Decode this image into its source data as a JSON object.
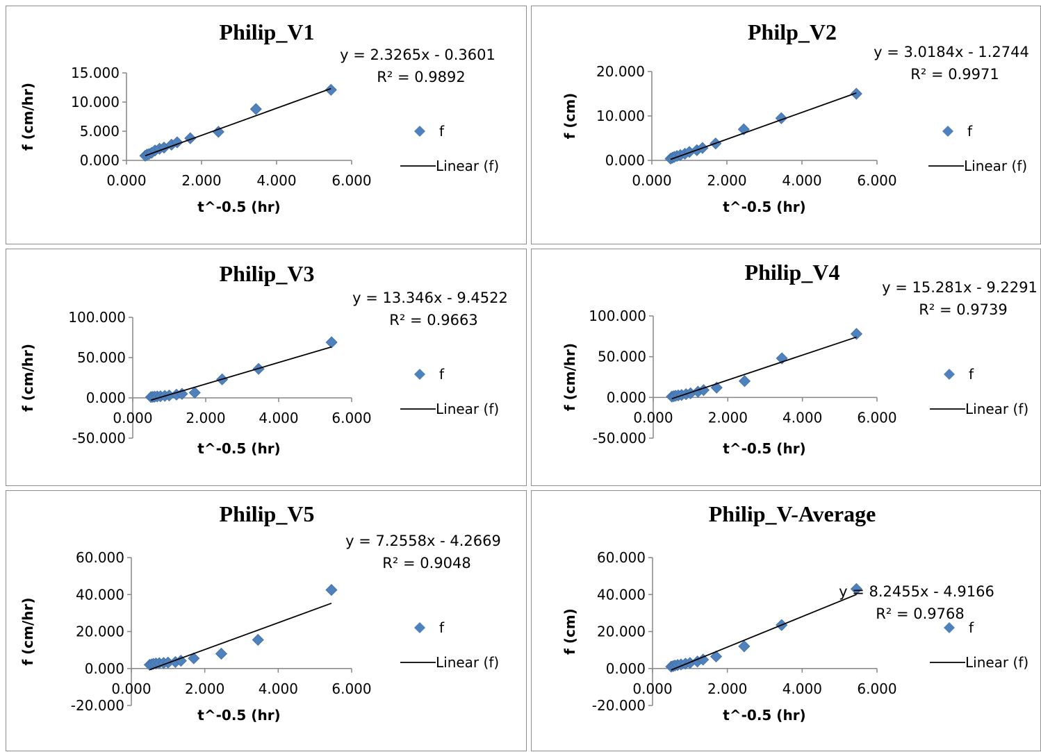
{
  "chart_data": [
    {
      "type": "scatter",
      "title": "Philip_V1",
      "xlabel": "t^-0.5 (hr)",
      "ylabel": "f (cm/hr)",
      "xlim": [
        0,
        6
      ],
      "ylim": [
        0,
        15
      ],
      "xticks": [
        "0.000",
        "2.000",
        "4.000",
        "6.000"
      ],
      "yticks": [
        "0.000",
        "5.000",
        "10.000",
        "15.000"
      ],
      "yticks_vals": [
        0,
        5,
        10,
        15
      ],
      "points": [
        [
          0.5,
          0.8
        ],
        [
          0.55,
          1.0
        ],
        [
          0.6,
          1.1
        ],
        [
          0.67,
          1.3
        ],
        [
          0.76,
          1.7
        ],
        [
          0.88,
          2.0
        ],
        [
          1.0,
          2.2
        ],
        [
          1.2,
          2.7
        ],
        [
          1.35,
          3.1
        ],
        [
          1.7,
          3.8
        ],
        [
          2.45,
          4.9
        ],
        [
          3.45,
          8.8
        ],
        [
          5.45,
          12.1
        ]
      ],
      "trendline": {
        "slope": 2.3265,
        "intercept": -0.3601,
        "x_start": 0.5,
        "x_end": 5.45
      },
      "equation": "y = 2.3265x - 0.3601",
      "r2": "R² = 0.9892",
      "legend": {
        "series": "f",
        "trend": "Linear (f)"
      }
    },
    {
      "type": "scatter",
      "title": "Philp_V2",
      "xlabel": "t^-0.5 (hr)",
      "ylabel": "f (cm)",
      "xlim": [
        0,
        6
      ],
      "ylim": [
        0,
        20
      ],
      "xticks": [
        "0.000",
        "2.000",
        "4.000",
        "6.000"
      ],
      "yticks": [
        "0.000",
        "10.000",
        "20.000"
      ],
      "yticks_vals": [
        0,
        10,
        20
      ],
      "points": [
        [
          0.5,
          0.4
        ],
        [
          0.55,
          0.6
        ],
        [
          0.6,
          0.8
        ],
        [
          0.67,
          1.0
        ],
        [
          0.76,
          1.2
        ],
        [
          0.88,
          1.5
        ],
        [
          1.0,
          1.9
        ],
        [
          1.2,
          2.3
        ],
        [
          1.35,
          2.8
        ],
        [
          1.7,
          3.8
        ],
        [
          2.45,
          7.0
        ],
        [
          3.45,
          9.5
        ],
        [
          5.45,
          15.0
        ]
      ],
      "trendline": {
        "slope": 3.0184,
        "intercept": -1.2744,
        "x_start": 0.5,
        "x_end": 5.45
      },
      "equation": "y = 3.0184x - 1.2744",
      "r2": "R² = 0.9971",
      "legend": {
        "series": "f",
        "trend": "Linear (f)"
      }
    },
    {
      "type": "scatter",
      "title": "Philip_V3",
      "xlabel": "t^-0.5 (hr)",
      "ylabel": "f (cm/hr)",
      "xlim": [
        0,
        6
      ],
      "ylim": [
        -50,
        100
      ],
      "xticks": [
        "0.000",
        "2.000",
        "4.000",
        "6.000"
      ],
      "yticks": [
        "-50.000",
        "0.000",
        "50.000",
        "100.000"
      ],
      "yticks_vals": [
        -50,
        0,
        50,
        100
      ],
      "points": [
        [
          0.5,
          1.0
        ],
        [
          0.55,
          1.2
        ],
        [
          0.6,
          1.5
        ],
        [
          0.67,
          1.8
        ],
        [
          0.76,
          2.0
        ],
        [
          0.88,
          2.5
        ],
        [
          1.0,
          3.0
        ],
        [
          1.2,
          4.0
        ],
        [
          1.35,
          5.0
        ],
        [
          1.7,
          6.5
        ],
        [
          2.45,
          23.0
        ],
        [
          3.45,
          36.0
        ],
        [
          5.45,
          69.0
        ]
      ],
      "trendline": {
        "slope": 13.346,
        "intercept": -9.4522,
        "x_start": 0.5,
        "x_end": 5.45
      },
      "equation": "y = 13.346x - 9.4522",
      "r2": "R² = 0.9663",
      "legend": {
        "series": "f",
        "trend": "Linear (f)"
      }
    },
    {
      "type": "scatter",
      "title": "Philip_V4",
      "xlabel": "t^-0.5 (hr)",
      "ylabel": "f (cm/hr)",
      "xlim": [
        0,
        6
      ],
      "ylim": [
        -50,
        100
      ],
      "xticks": [
        "0.000",
        "2.000",
        "4.000",
        "6.000"
      ],
      "yticks": [
        "-50.000",
        "0.000",
        "50.000",
        "100.000"
      ],
      "yticks_vals": [
        -50,
        0,
        50,
        100
      ],
      "points": [
        [
          0.5,
          1.0
        ],
        [
          0.55,
          1.5
        ],
        [
          0.6,
          2.0
        ],
        [
          0.67,
          2.5
        ],
        [
          0.76,
          3.0
        ],
        [
          0.88,
          4.0
        ],
        [
          1.0,
          5.0
        ],
        [
          1.2,
          7.0
        ],
        [
          1.35,
          9.0
        ],
        [
          1.7,
          12.0
        ],
        [
          2.45,
          20.0
        ],
        [
          3.45,
          48.0
        ],
        [
          5.45,
          78.0
        ]
      ],
      "trendline": {
        "slope": 15.281,
        "intercept": -9.2291,
        "x_start": 0.5,
        "x_end": 5.45
      },
      "equation": "y = 15.281x - 9.2291",
      "r2": "R² = 0.9739",
      "legend": {
        "series": "f",
        "trend": "Linear (f)"
      }
    },
    {
      "type": "scatter",
      "title": "Philip_V5",
      "xlabel": "t^-0.5 (hr)",
      "ylabel": "f (cm/hr)",
      "xlim": [
        0,
        6
      ],
      "ylim": [
        -20,
        60
      ],
      "xticks": [
        "0.000",
        "2.000",
        "4.000",
        "6.000"
      ],
      "yticks": [
        "-20.000",
        "0.000",
        "20.000",
        "40.000",
        "60.000"
      ],
      "yticks_vals": [
        -20,
        0,
        20,
        40,
        60
      ],
      "points": [
        [
          0.5,
          2.0
        ],
        [
          0.55,
          2.2
        ],
        [
          0.6,
          2.5
        ],
        [
          0.67,
          2.7
        ],
        [
          0.76,
          2.9
        ],
        [
          0.88,
          3.0
        ],
        [
          1.0,
          3.2
        ],
        [
          1.2,
          3.5
        ],
        [
          1.35,
          4.2
        ],
        [
          1.7,
          5.5
        ],
        [
          2.45,
          8.0
        ],
        [
          3.45,
          15.5
        ],
        [
          5.45,
          42.5
        ]
      ],
      "trendline": {
        "slope": 7.2558,
        "intercept": -4.2669,
        "x_start": 0.5,
        "x_end": 5.45
      },
      "equation": "y = 7.2558x - 4.2669",
      "r2": "R² = 0.9048",
      "legend": {
        "series": "f",
        "trend": "Linear (f)"
      }
    },
    {
      "type": "scatter",
      "title": "Philip_V-Average",
      "xlabel": "t^-0.5 (hr)",
      "ylabel": "f (cm)",
      "xlim": [
        0,
        6
      ],
      "ylim": [
        -20,
        60
      ],
      "xticks": [
        "0.000",
        "2.000",
        "4.000",
        "6.000"
      ],
      "yticks": [
        "-20.000",
        "0.000",
        "20.000",
        "40.000",
        "60.000"
      ],
      "yticks_vals": [
        -20,
        0,
        20,
        40,
        60
      ],
      "points": [
        [
          0.5,
          1.0
        ],
        [
          0.55,
          1.3
        ],
        [
          0.6,
          1.6
        ],
        [
          0.67,
          1.9
        ],
        [
          0.76,
          2.2
        ],
        [
          0.88,
          2.6
        ],
        [
          1.0,
          3.0
        ],
        [
          1.2,
          3.8
        ],
        [
          1.35,
          4.8
        ],
        [
          1.7,
          6.5
        ],
        [
          2.45,
          12.0
        ],
        [
          3.45,
          23.5
        ],
        [
          5.45,
          43.0
        ]
      ],
      "trendline": {
        "slope": 8.2455,
        "intercept": -4.9166,
        "x_start": 0.5,
        "x_end": 5.45
      },
      "equation": "y = 8.2455x - 4.9166",
      "r2": "R² = 0.9768",
      "legend": {
        "series": "f",
        "trend": "Linear (f)"
      }
    }
  ],
  "colors": {
    "marker": "#4F81BD",
    "trend": "#000000",
    "axis": "#868686"
  }
}
